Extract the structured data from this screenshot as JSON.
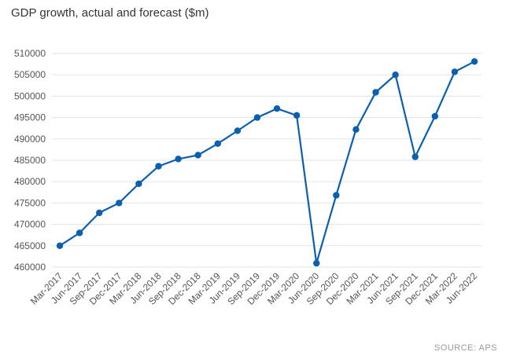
{
  "chart_data": {
    "type": "line",
    "title": "GDP growth, actual and forecast ($m)",
    "xlabel": "",
    "ylabel": "",
    "categories": [
      "Mar-2017",
      "Jun-2017",
      "Sep-2017",
      "Dec-2017",
      "Mar-2018",
      "Jun-2018",
      "Sep-2018",
      "Dec-2018",
      "Mar-2019",
      "Jun-2019",
      "Sep-2019",
      "Dec-2019",
      "Mar-2020",
      "Jun-2020",
      "Sep-2020",
      "Dec-2020",
      "Mar-2021",
      "Jun-2021",
      "Sep-2021",
      "Dec-2021",
      "Mar-2022",
      "Jun-2022"
    ],
    "series": [
      {
        "values": [
          465000,
          468000,
          472700,
          475000,
          479500,
          483600,
          485300,
          486200,
          488900,
          491900,
          495000,
          497100,
          495500,
          460900,
          476800,
          492200,
          500900,
          505000,
          485800,
          495300,
          505700,
          508100
        ]
      }
    ],
    "yticks": [
      460000,
      465000,
      470000,
      475000,
      480000,
      485000,
      490000,
      495000,
      500000,
      505000,
      510000
    ],
    "ylim": [
      460000,
      510000
    ],
    "grid": true,
    "legend": "none",
    "colors": {
      "line": "#0b5fb0",
      "grid": "#e3e3e3"
    }
  },
  "source": "SOURCE: APS"
}
